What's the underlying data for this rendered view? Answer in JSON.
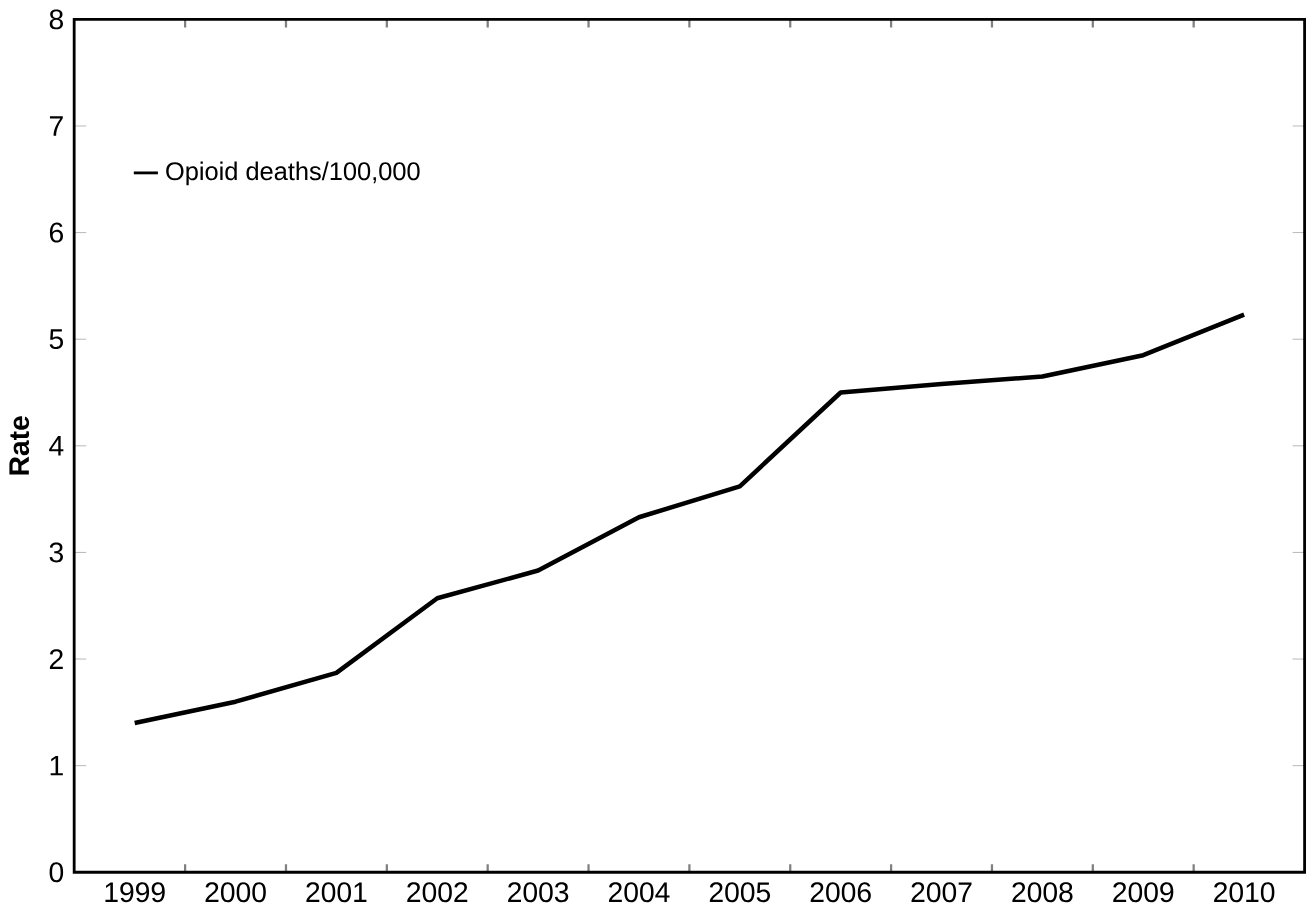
{
  "chart_data": {
    "type": "line",
    "ylabel": "Rate",
    "categories": [
      "1999",
      "2000",
      "2001",
      "2002",
      "2003",
      "2004",
      "2005",
      "2006",
      "2007",
      "2008",
      "2009",
      "2010"
    ],
    "series": [
      {
        "name": "Opioid deaths/100,000",
        "color": "#000000",
        "values": [
          1.4,
          1.6,
          1.87,
          2.57,
          2.83,
          3.33,
          3.62,
          4.5,
          4.58,
          4.65,
          4.85,
          5.23
        ]
      }
    ],
    "ylim": [
      0,
      8
    ],
    "yticks": [
      0,
      1,
      2,
      3,
      4,
      5,
      6,
      7,
      8
    ],
    "legend": "top left",
    "grid": false,
    "marker": "none",
    "line_style": "solid"
  }
}
